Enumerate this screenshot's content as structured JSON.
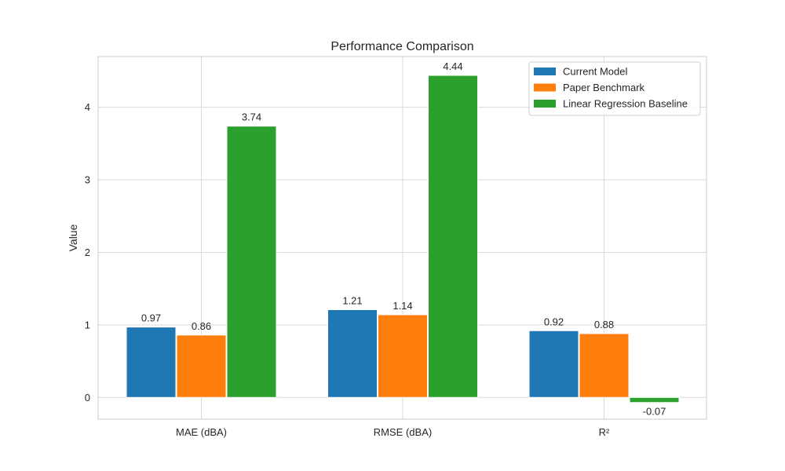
{
  "chart_data": {
    "type": "bar",
    "title": "Performance Comparison",
    "xlabel": "",
    "ylabel": "Value",
    "categories": [
      "MAE (dBA)",
      "RMSE (dBA)",
      "R²"
    ],
    "series": [
      {
        "name": "Current Model",
        "values": [
          0.97,
          1.21,
          0.92
        ],
        "labels": [
          "0.97",
          "1.21",
          "0.92"
        ],
        "color": "#1f77b4"
      },
      {
        "name": "Paper Benchmark",
        "values": [
          0.86,
          1.14,
          0.88
        ],
        "labels": [
          "0.86",
          "1.14",
          "0.88"
        ],
        "color": "#ff7f0e"
      },
      {
        "name": "Linear Regression Baseline",
        "values": [
          3.74,
          4.44,
          -0.07
        ],
        "labels": [
          "3.74",
          "4.44",
          "-0.07"
        ],
        "color": "#2ca02c"
      }
    ],
    "ylim": [
      -0.3,
      4.7
    ],
    "yticks": [
      0,
      1,
      2,
      3,
      4
    ],
    "ytick_labels": [
      "0",
      "1",
      "2",
      "3",
      "4"
    ],
    "grid": true,
    "legend_position": "top-right"
  }
}
